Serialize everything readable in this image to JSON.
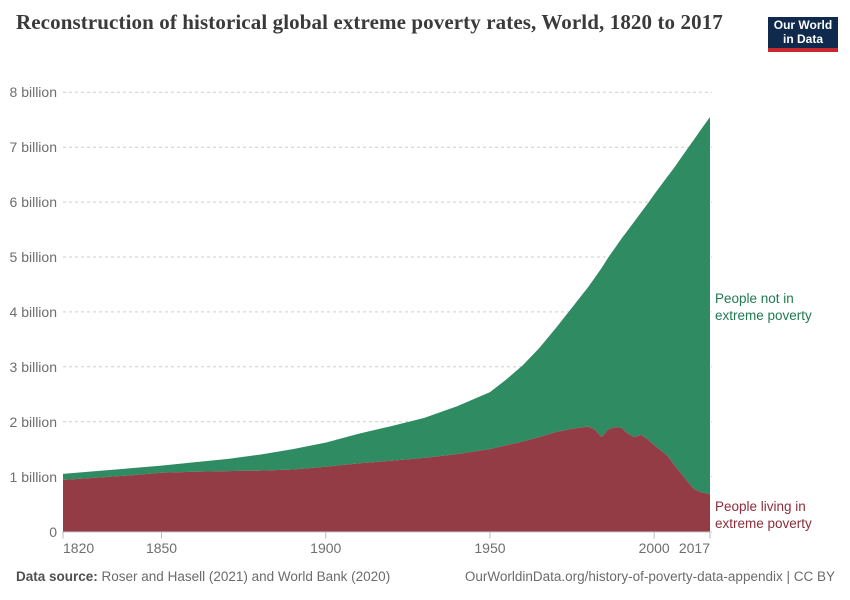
{
  "header": {
    "title": "Reconstruction of historical global extreme poverty rates, World, 1820 to 2017",
    "logo": {
      "line1": "Our World",
      "line2": "in Data"
    }
  },
  "chart_data": {
    "type": "area",
    "stacked": true,
    "title": "Reconstruction of historical global extreme poverty rates, World, 1820 to 2017",
    "xlabel": "",
    "ylabel": "",
    "y_unit": "billion people",
    "x_range": [
      1820,
      2017
    ],
    "y_range": [
      0,
      8
    ],
    "grid": "dashed horizontal gridlines",
    "legend_position": "labels right of plot",
    "x_ticks": [
      1820,
      1850,
      1900,
      1950,
      2000,
      2017
    ],
    "y_ticks": [
      {
        "value": 0,
        "label": "0"
      },
      {
        "value": 1,
        "label": "1 billion"
      },
      {
        "value": 2,
        "label": "2 billion"
      },
      {
        "value": 3,
        "label": "3 billion"
      },
      {
        "value": 4,
        "label": "4 billion"
      },
      {
        "value": 5,
        "label": "5 billion"
      },
      {
        "value": 6,
        "label": "6 billion"
      },
      {
        "value": 7,
        "label": "7 billion"
      },
      {
        "value": 8,
        "label": "8 billion"
      }
    ],
    "years": [
      1820,
      1830,
      1840,
      1850,
      1860,
      1870,
      1880,
      1890,
      1900,
      1910,
      1920,
      1930,
      1940,
      1950,
      1955,
      1960,
      1965,
      1970,
      1975,
      1980,
      1982,
      1984,
      1986,
      1988,
      1990,
      1992,
      1994,
      1996,
      1998,
      2000,
      2002,
      2004,
      2006,
      2008,
      2010,
      2012,
      2014,
      2017
    ],
    "series": [
      {
        "name": "People living in extreme poverty",
        "color": "#933c45",
        "label_color": "#8c2d39",
        "values": [
          0.94,
          0.98,
          1.02,
          1.07,
          1.09,
          1.1,
          1.11,
          1.13,
          1.18,
          1.24,
          1.29,
          1.34,
          1.41,
          1.5,
          1.57,
          1.64,
          1.72,
          1.81,
          1.87,
          1.91,
          1.85,
          1.72,
          1.86,
          1.9,
          1.89,
          1.78,
          1.72,
          1.76,
          1.68,
          1.57,
          1.48,
          1.38,
          1.22,
          1.07,
          0.92,
          0.78,
          0.72,
          0.68
        ]
      },
      {
        "name": "People not in extreme poverty",
        "color": "#2f8b62",
        "label_color": "#1f7a51",
        "values": [
          0.11,
          0.12,
          0.13,
          0.13,
          0.17,
          0.22,
          0.29,
          0.37,
          0.44,
          0.54,
          0.63,
          0.73,
          0.87,
          1.04,
          1.2,
          1.39,
          1.62,
          1.89,
          2.21,
          2.55,
          2.78,
          3.08,
          3.13,
          3.26,
          3.44,
          3.71,
          3.93,
          4.05,
          4.29,
          4.57,
          4.82,
          5.08,
          5.4,
          5.72,
          6.04,
          6.35,
          6.58,
          6.87
        ]
      }
    ]
  },
  "footer": {
    "source_label": "Data source:",
    "source_text": " Roser and Hasell (2021) and World Bank (2020)",
    "citation": "OurWorldinData.org/history-of-poverty-data-appendix | CC BY"
  }
}
